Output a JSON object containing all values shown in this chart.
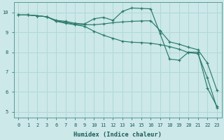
{
  "xlabel": "Humidex (Indice chaleur)",
  "bg_color": "#cce8e8",
  "line_color": "#2a7a6a",
  "grid_color": "#b0d8d8",
  "xtick_labels": [
    "0",
    "1",
    "2",
    "3",
    "6",
    "7",
    "8",
    "9",
    "10",
    "11",
    "12",
    "13",
    "14",
    "15",
    "16",
    "17",
    "18",
    "19",
    "20",
    "21",
    "22",
    "23"
  ],
  "yticks": [
    5,
    6,
    7,
    8,
    9,
    10
  ],
  "ylim": [
    4.7,
    10.5
  ],
  "series": [
    {
      "xi": [
        0,
        1,
        2,
        3,
        4,
        5,
        6,
        7,
        8,
        9,
        10,
        11,
        12,
        13,
        14,
        15,
        16,
        17,
        18,
        19,
        20,
        21
      ],
      "y": [
        9.87,
        9.87,
        9.83,
        9.78,
        9.6,
        9.55,
        9.45,
        9.42,
        9.68,
        9.75,
        9.6,
        10.05,
        10.22,
        10.2,
        10.18,
        8.92,
        7.65,
        7.6,
        8.0,
        8.0,
        6.2,
        5.28
      ]
    },
    {
      "xi": [
        0,
        1,
        2,
        3,
        4,
        5,
        6,
        7,
        8,
        9,
        10,
        11,
        12,
        13,
        14,
        15,
        16,
        17,
        18,
        19,
        20,
        21
      ],
      "y": [
        9.87,
        9.87,
        9.83,
        9.78,
        9.58,
        9.5,
        9.4,
        9.38,
        9.38,
        9.42,
        9.48,
        9.52,
        9.55,
        9.57,
        9.58,
        9.08,
        8.52,
        8.4,
        8.25,
        8.12,
        7.45,
        6.1
      ]
    },
    {
      "xi": [
        0,
        1,
        2,
        3,
        4,
        5,
        6,
        7,
        8,
        9,
        10,
        11,
        12,
        13,
        14,
        15,
        16,
        17,
        18,
        19,
        20,
        21
      ],
      "y": [
        9.87,
        9.87,
        9.83,
        9.78,
        9.55,
        9.45,
        9.38,
        9.3,
        9.05,
        8.85,
        8.7,
        8.55,
        8.5,
        8.48,
        8.45,
        8.38,
        8.28,
        8.15,
        7.98,
        7.92,
        6.7,
        5.22
      ]
    }
  ]
}
